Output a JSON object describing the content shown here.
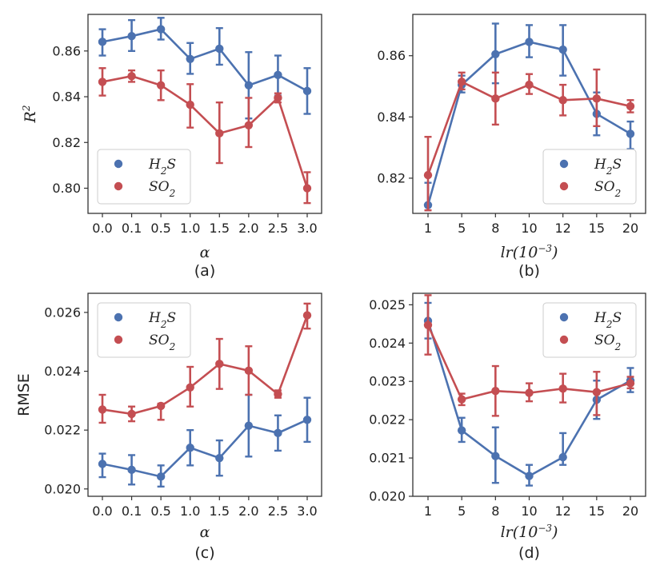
{
  "chart_data": [
    {
      "id": "a",
      "type": "line",
      "caption": "(a)",
      "xlabel_symbol": "α",
      "ylabel": "R",
      "ylabel_sup": "2",
      "categories": [
        "0.0",
        "0.1",
        "0.5",
        "1.0",
        "1.5",
        "2.0",
        "2.5",
        "3.0"
      ],
      "ylim": [
        0.789,
        0.876
      ],
      "yticks": [
        0.8,
        0.82,
        0.84,
        0.86
      ],
      "ytick_labels": [
        "0.80",
        "0.82",
        "0.84",
        "0.86"
      ],
      "legend_position": "bottom-left",
      "series": [
        {
          "name": "H2S",
          "label_main": "H",
          "label_sub": "2",
          "label_tail": "S",
          "color": "#4c72b0",
          "values": [
            0.864,
            0.8665,
            0.8695,
            0.8565,
            0.861,
            0.845,
            0.8495,
            0.8425
          ],
          "err_low": [
            0.858,
            0.86,
            0.865,
            0.85,
            0.854,
            0.8305,
            0.8405,
            0.8325
          ],
          "err_high": [
            0.8695,
            0.8735,
            0.8745,
            0.8635,
            0.87,
            0.8595,
            0.858,
            0.8525
          ]
        },
        {
          "name": "SO2",
          "label_main": "SO",
          "label_sub": "2",
          "label_tail": "",
          "color": "#c44e52",
          "values": [
            0.8465,
            0.849,
            0.845,
            0.8365,
            0.824,
            0.8275,
            0.8395,
            0.8
          ],
          "err_low": [
            0.8405,
            0.8465,
            0.8385,
            0.8265,
            0.811,
            0.818,
            0.8375,
            0.7935
          ],
          "err_high": [
            0.8525,
            0.8515,
            0.8515,
            0.8455,
            0.8375,
            0.8395,
            0.8415,
            0.807
          ]
        }
      ]
    },
    {
      "id": "b",
      "type": "line",
      "caption": "(b)",
      "xlabel_main": "lr(10",
      "xlabel_sup": "−3",
      "xlabel_tail": ")",
      "ylabel": "",
      "categories": [
        "1",
        "5",
        "8",
        "10",
        "12",
        "15",
        "20"
      ],
      "ylim": [
        0.8085,
        0.8735
      ],
      "yticks": [
        0.82,
        0.84,
        0.86
      ],
      "ytick_labels": [
        "0.82",
        "0.84",
        "0.86"
      ],
      "legend_position": "bottom-right",
      "series": [
        {
          "name": "H2S",
          "label_main": "H",
          "label_sub": "2",
          "label_tail": "S",
          "color": "#4c72b0",
          "values": [
            0.8112,
            0.8505,
            0.8605,
            0.8645,
            0.862,
            0.841,
            0.8345
          ],
          "err_low": [
            0.8095,
            0.848,
            0.851,
            0.8595,
            0.8535,
            0.834,
            0.8295
          ],
          "err_high": [
            0.8185,
            0.8535,
            0.8705,
            0.87,
            0.87,
            0.848,
            0.8385
          ]
        },
        {
          "name": "SO2",
          "label_main": "SO",
          "label_sub": "2",
          "label_tail": "",
          "color": "#c44e52",
          "values": [
            0.821,
            0.8515,
            0.846,
            0.8505,
            0.8455,
            0.846,
            0.8435
          ],
          "err_low": [
            0.8095,
            0.849,
            0.8375,
            0.8475,
            0.8405,
            0.837,
            0.8415
          ],
          "err_high": [
            0.8335,
            0.8545,
            0.8545,
            0.854,
            0.8505,
            0.8555,
            0.8455
          ]
        }
      ]
    },
    {
      "id": "c",
      "type": "line",
      "caption": "(c)",
      "xlabel_symbol": "α",
      "ylabel": "RMSE",
      "categories": [
        "0.0",
        "0.1",
        "0.5",
        "1.0",
        "1.5",
        "2.0",
        "2.5",
        "3.0"
      ],
      "ylim": [
        0.01975,
        0.02665
      ],
      "yticks": [
        0.02,
        0.022,
        0.024,
        0.026
      ],
      "ytick_labels": [
        "0.020",
        "0.022",
        "0.024",
        "0.026"
      ],
      "legend_position": "top-left",
      "series": [
        {
          "name": "H2S",
          "label_main": "H",
          "label_sub": "2",
          "label_tail": "S",
          "color": "#4c72b0",
          "values": [
            0.02085,
            0.02065,
            0.02042,
            0.0214,
            0.02105,
            0.02215,
            0.0219,
            0.02235
          ],
          "err_low": [
            0.0204,
            0.02015,
            0.02008,
            0.0208,
            0.02045,
            0.0211,
            0.0213,
            0.0216
          ],
          "err_high": [
            0.0212,
            0.02115,
            0.0208,
            0.022,
            0.02165,
            0.0232,
            0.0225,
            0.0231
          ]
        },
        {
          "name": "SO2",
          "label_main": "SO",
          "label_sub": "2",
          "label_tail": "",
          "color": "#c44e52",
          "values": [
            0.0227,
            0.02255,
            0.02282,
            0.02345,
            0.02425,
            0.02402,
            0.02322,
            0.0259
          ],
          "err_low": [
            0.02225,
            0.0223,
            0.02235,
            0.0228,
            0.0234,
            0.0232,
            0.0231,
            0.02545
          ],
          "err_high": [
            0.0232,
            0.0228,
            0.0229,
            0.02415,
            0.0251,
            0.02485,
            0.02335,
            0.0263
          ]
        }
      ]
    },
    {
      "id": "d",
      "type": "line",
      "caption": "(d)",
      "xlabel_main": "lr(10",
      "xlabel_sup": "−3",
      "xlabel_tail": ")",
      "ylabel": "",
      "categories": [
        "1",
        "5",
        "8",
        "10",
        "12",
        "15",
        "20"
      ],
      "ylim": [
        0.02,
        0.0253
      ],
      "yticks": [
        0.02,
        0.021,
        0.022,
        0.023,
        0.024,
        0.025
      ],
      "ytick_labels": [
        "0.020",
        "0.021",
        "0.022",
        "0.023",
        "0.024",
        "0.025"
      ],
      "legend_position": "top-right",
      "series": [
        {
          "name": "H2S",
          "label_main": "H",
          "label_sub": "2",
          "label_tail": "S",
          "color": "#4c72b0",
          "values": [
            0.02458,
            0.02172,
            0.02105,
            0.02053,
            0.02102,
            0.02252,
            0.02302
          ],
          "err_low": [
            0.02412,
            0.02142,
            0.02035,
            0.02028,
            0.02082,
            0.02202,
            0.02272
          ],
          "err_high": [
            0.02505,
            0.02205,
            0.0218,
            0.02082,
            0.02165,
            0.02302,
            0.02335
          ]
        },
        {
          "name": "SO2",
          "label_main": "SO",
          "label_sub": "2",
          "label_tail": "",
          "color": "#c44e52",
          "values": [
            0.02447,
            0.02253,
            0.02275,
            0.0227,
            0.02281,
            0.02272,
            0.02295
          ],
          "err_low": [
            0.0237,
            0.02238,
            0.0221,
            0.02248,
            0.02245,
            0.02212,
            0.02282
          ],
          "err_high": [
            0.02525,
            0.02268,
            0.0234,
            0.02295,
            0.0232,
            0.02325,
            0.02312
          ]
        }
      ]
    }
  ]
}
